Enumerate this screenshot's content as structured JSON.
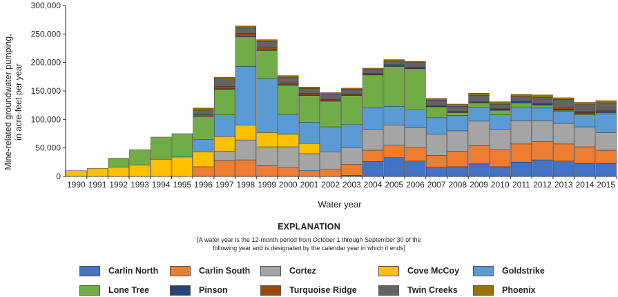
{
  "chart_data": {
    "type": "bar",
    "stacked": true,
    "ylabel_line1": "Mine-related groundwater pumping,",
    "ylabel_line2": "in acre-feet per year",
    "xlabel": "Water year",
    "ylim": [
      0,
      300000
    ],
    "yticks": [
      "0",
      "50,000",
      "100,000",
      "150,000",
      "200,000",
      "250,000",
      "300,000"
    ],
    "ytick_values": [
      0,
      50000,
      100000,
      150000,
      200000,
      250000,
      300000
    ],
    "categories": [
      "1990",
      "1991",
      "1992",
      "1993",
      "1994",
      "1995",
      "1996",
      "1997",
      "1998",
      "1999",
      "2000",
      "2001",
      "2002",
      "2003",
      "2004",
      "2005",
      "2006",
      "2007",
      "2008",
      "2009",
      "2010",
      "2011",
      "2012",
      "2013",
      "2014",
      "2015"
    ],
    "series": [
      {
        "name": "Carlin North",
        "color": "#4472c4",
        "values": [
          0,
          0,
          0,
          0,
          0,
          0,
          0,
          0,
          0,
          0,
          0,
          0,
          0,
          2000,
          26000,
          33000,
          27000,
          16000,
          17000,
          22000,
          17000,
          25000,
          29000,
          27000,
          23000,
          23000
        ]
      },
      {
        "name": "Carlin South",
        "color": "#ed7d31",
        "values": [
          0,
          0,
          0,
          0,
          0,
          0,
          17000,
          28000,
          29000,
          19000,
          15000,
          10000,
          12000,
          19000,
          20000,
          22000,
          24000,
          21000,
          27000,
          32000,
          30000,
          32000,
          32000,
          30000,
          29000,
          23000
        ]
      },
      {
        "name": "Cortez",
        "color": "#a5a5a5",
        "values": [
          0,
          0,
          0,
          0,
          0,
          0,
          0,
          16000,
          35000,
          33000,
          37000,
          30000,
          31000,
          29000,
          37000,
          35000,
          34000,
          37000,
          36000,
          43000,
          36000,
          41000,
          37000,
          36000,
          35000,
          31000
        ]
      },
      {
        "name": "Cove McCoy",
        "color": "#ffc000",
        "values": [
          10000,
          14000,
          16000,
          20000,
          30000,
          34000,
          26000,
          26000,
          26000,
          25000,
          22000,
          18000,
          0,
          0,
          0,
          0,
          0,
          0,
          0,
          0,
          0,
          0,
          0,
          0,
          0,
          0
        ]
      },
      {
        "name": "Goldstrike",
        "color": "#5b9bd5",
        "values": [
          0,
          0,
          0,
          0,
          0,
          0,
          22000,
          38000,
          103000,
          95000,
          35000,
          37000,
          44000,
          41000,
          37000,
          33000,
          32000,
          29000,
          27000,
          24000,
          25000,
          24000,
          22000,
          21000,
          21000,
          33000
        ]
      },
      {
        "name": "Lone Tree",
        "color": "#70ad47",
        "values": [
          0,
          0,
          16000,
          27000,
          39000,
          41000,
          40000,
          45000,
          52000,
          49000,
          51000,
          47000,
          45000,
          51000,
          58000,
          70000,
          72000,
          19000,
          5000,
          8000,
          8000,
          7000,
          5000,
          2000,
          2000,
          2000
        ]
      },
      {
        "name": "Pinson",
        "color": "#264478",
        "values": [
          0,
          0,
          0,
          0,
          0,
          0,
          0,
          1000,
          1000,
          1000,
          1000,
          1000,
          1000,
          1000,
          1000,
          1000,
          1000,
          1000,
          1000,
          1000,
          2000,
          2000,
          2000,
          2000,
          2000,
          2000
        ]
      },
      {
        "name": "Turquoise Ridge",
        "color": "#9e480e",
        "values": [
          0,
          0,
          0,
          0,
          0,
          0,
          3000,
          4000,
          5000,
          4000,
          3000,
          3000,
          2000,
          2000,
          2000,
          2000,
          2000,
          1000,
          1000,
          1000,
          1000,
          1000,
          1000,
          2000,
          2000,
          2000
        ]
      },
      {
        "name": "Twin Creeks",
        "color": "#636363",
        "values": [
          0,
          0,
          0,
          0,
          0,
          0,
          9000,
          13000,
          10000,
          11000,
          10000,
          8000,
          10000,
          8000,
          7000,
          7000,
          8000,
          10000,
          9000,
          11000,
          8000,
          8000,
          11000,
          15000,
          12000,
          13000
        ]
      },
      {
        "name": "Phoenix",
        "color": "#997300",
        "values": [
          0,
          0,
          0,
          0,
          0,
          0,
          3000,
          3000,
          3000,
          3000,
          3000,
          3000,
          2000,
          2000,
          2000,
          2000,
          2000,
          3000,
          4000,
          4000,
          4000,
          4000,
          4000,
          3000,
          4000,
          4000
        ]
      }
    ],
    "legend_position": "bottom",
    "grid": false
  },
  "explanation": {
    "title": "EXPLANATION",
    "note_line1": "[A water year is the 12-month period from October 1 through September 30 of the",
    "note_line2": "following year and is designated by the calendar year in which it ends]"
  }
}
